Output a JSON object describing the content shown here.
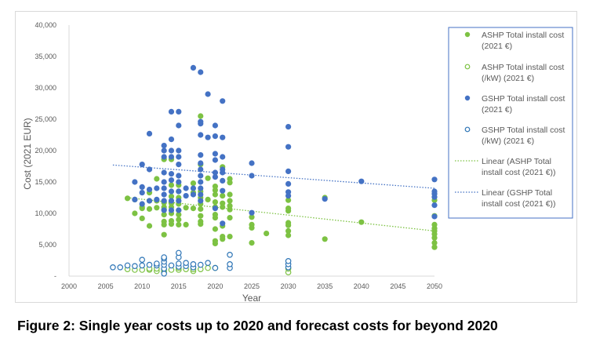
{
  "chart_data": {
    "type": "scatter",
    "title": "",
    "xlabel": "Year",
    "ylabel": "Cost (2021 EUR)",
    "xlim": [
      2000,
      2050
    ],
    "ylim": [
      0,
      40000
    ],
    "x_ticks": [
      "2000",
      "2005",
      "2010",
      "2015",
      "2020",
      "2025",
      "2030",
      "2035",
      "2040",
      "2045",
      "2050"
    ],
    "y_ticks": [
      {
        "value": 0,
        "label": "-"
      },
      {
        "value": 5000,
        "label": "5,000"
      },
      {
        "value": 10000,
        "label": "10,000"
      },
      {
        "value": 15000,
        "label": "15,000"
      },
      {
        "value": 20000,
        "label": "20,000"
      },
      {
        "value": 25000,
        "label": "25,000"
      },
      {
        "value": 30000,
        "label": "30,000"
      },
      {
        "value": 35000,
        "label": "35,000"
      },
      {
        "value": 40000,
        "label": "40,000"
      }
    ],
    "grid": false,
    "legend_placement": "right",
    "colors": {
      "ashp": "#7dc243",
      "gshp": "#4472c4",
      "gshp_open": "#2e75b6"
    },
    "series": [
      {
        "name": "ASHP Total install cost (2021 €)",
        "legend_lines": [
          "ASHP Total install cost",
          "(2021 €)"
        ],
        "marker": "filled",
        "color": "#7dc243",
        "points": {
          "2008": [
            12400
          ],
          "2009": [
            10000,
            12200
          ],
          "2010": [
            9200,
            10800,
            11000
          ],
          "2011": [
            8000,
            10700,
            12000,
            13300
          ],
          "2012": [
            10900,
            12000,
            15500
          ],
          "2013": [
            6600,
            8200,
            8700,
            9800,
            10600,
            11000,
            11700,
            18600
          ],
          "2014": [
            8300,
            8800,
            10000,
            11000,
            11600,
            12700,
            14500,
            18600
          ],
          "2015": [
            8200,
            9000,
            9800,
            10500,
            11500,
            12500,
            13500,
            14500
          ],
          "2016": [
            8200,
            10900
          ],
          "2017": [
            10800,
            13300,
            14800
          ],
          "2018": [
            8300,
            8700,
            9600,
            10700,
            11500,
            12500,
            13500,
            17800,
            25500
          ],
          "2019": [
            12200,
            15600
          ],
          "2020": [
            5200,
            5600,
            7500,
            9300,
            9800,
            11000,
            11800,
            13000,
            13700,
            14300
          ],
          "2021": [
            5900,
            6300,
            8000,
            11000,
            11600,
            12800,
            17400
          ],
          "2022": [
            6300,
            9300,
            10600,
            11200,
            12000,
            13000,
            14900,
            15500
          ],
          "2025": [
            5300,
            7700,
            8200,
            9400
          ],
          "2027": [
            6800
          ],
          "2030": [
            6500,
            7200,
            8100,
            8500,
            10400,
            10800,
            12100
          ],
          "2035": [
            5900,
            12500
          ],
          "2040": [
            8600
          ],
          "2050": [
            4600,
            5300,
            6100,
            6700,
            7200,
            7600,
            8200,
            9600,
            12100
          ]
        }
      },
      {
        "name": "ASHP Total install cost (/kW) (2021 €)",
        "legend_lines": [
          "ASHP Total install cost",
          "(/kW) (2021 €)"
        ],
        "marker": "open",
        "color": "#7dc243",
        "points": {
          "2008": [
            1100
          ],
          "2009": [
            1000
          ],
          "2010": [
            1000
          ],
          "2011": [
            1000,
            1200
          ],
          "2012": [
            800,
            1200
          ],
          "2013": [
            700,
            1000
          ],
          "2014": [
            1000
          ],
          "2015": [
            1000,
            1300
          ],
          "2016": [
            1100
          ],
          "2017": [
            800,
            1100
          ],
          "2018": [
            1100
          ],
          "2019": [
            1300
          ],
          "2020": [
            1300
          ],
          "2030": [
            600,
            1200
          ]
        }
      },
      {
        "name": "GSHP Total install cost (2021 €)",
        "legend_lines": [
          "GSHP Total install cost",
          "(2021 €)"
        ],
        "marker": "filled",
        "color": "#4472c4",
        "points": {
          "2009": [
            12200,
            15000
          ],
          "2010": [
            11500,
            13300,
            14200,
            17800
          ],
          "2011": [
            12000,
            13800,
            17000,
            22700
          ],
          "2012": [
            12200,
            14000
          ],
          "2013": [
            10500,
            12000,
            13000,
            14000,
            15000,
            16500,
            19000,
            20000,
            20800
          ],
          "2014": [
            10500,
            12000,
            13500,
            15300,
            16300,
            19000,
            20000,
            21800,
            26200
          ],
          "2015": [
            10500,
            12000,
            13500,
            15000,
            16000,
            17800,
            19000,
            20000,
            24000,
            26200
          ],
          "2016": [
            12800,
            14000
          ],
          "2017": [
            13000,
            14000,
            33200
          ],
          "2018": [
            12000,
            13000,
            14000,
            15000,
            16000,
            17000,
            18000,
            19300,
            22500,
            24300,
            24600,
            32500
          ],
          "2019": [
            22100,
            29000
          ],
          "2020": [
            10800,
            15800,
            16500,
            18500,
            19500,
            22300,
            24000
          ],
          "2021": [
            8400,
            13600,
            15200,
            16500,
            17000,
            19000,
            22100,
            27900
          ],
          "2025": [
            10100,
            16000,
            18000
          ],
          "2030": [
            12800,
            13400,
            14700,
            16700,
            20600,
            23800
          ],
          "2035": [
            12300
          ],
          "2040": [
            15100
          ],
          "2050": [
            9500,
            11300,
            12600,
            13100,
            13500,
            15400
          ]
        }
      },
      {
        "name": "GSHP Total install cost (/kW) (2021 €)",
        "legend_lines": [
          "GSHP Total install cost",
          "(/kW) (2021 €)"
        ],
        "marker": "open",
        "color": "#2e75b6",
        "points": {
          "2006": [
            1400
          ],
          "2007": [
            1400
          ],
          "2008": [
            1700
          ],
          "2009": [
            1600
          ],
          "2010": [
            1700,
            2600
          ],
          "2011": [
            1800
          ],
          "2012": [
            1700,
            2000
          ],
          "2013": [
            400,
            1200,
            1800,
            2300,
            2800,
            3000
          ],
          "2014": [
            1700
          ],
          "2015": [
            1500,
            2000,
            3000,
            3700
          ],
          "2016": [
            1600,
            2100
          ],
          "2017": [
            1400,
            1900
          ],
          "2018": [
            1800
          ],
          "2019": [
            2100
          ],
          "2020": [
            1300
          ],
          "2022": [
            1300,
            1900,
            3400
          ],
          "2030": [
            1400,
            1900,
            2400
          ]
        }
      },
      {
        "name": "Linear (ASHP Total install cost (2021 €))",
        "legend_lines": [
          "Linear (ASHP Total",
          "install cost (2021 €))"
        ],
        "marker": "dotted-line",
        "color": "#7dc243",
        "line": [
          [
            2008,
            12500
          ],
          [
            2050,
            7200
          ]
        ]
      },
      {
        "name": "Linear (GSHP Total install cost (2021 €))",
        "legend_lines": [
          "Linear (GSHP Total",
          "install cost (2021 €))"
        ],
        "marker": "dotted-line",
        "color": "#4472c4",
        "line": [
          [
            2006,
            17700
          ],
          [
            2050,
            14000
          ]
        ]
      }
    ]
  },
  "caption": "Figure 2: Single year costs up to 2020 and forecast costs for beyond 2020"
}
